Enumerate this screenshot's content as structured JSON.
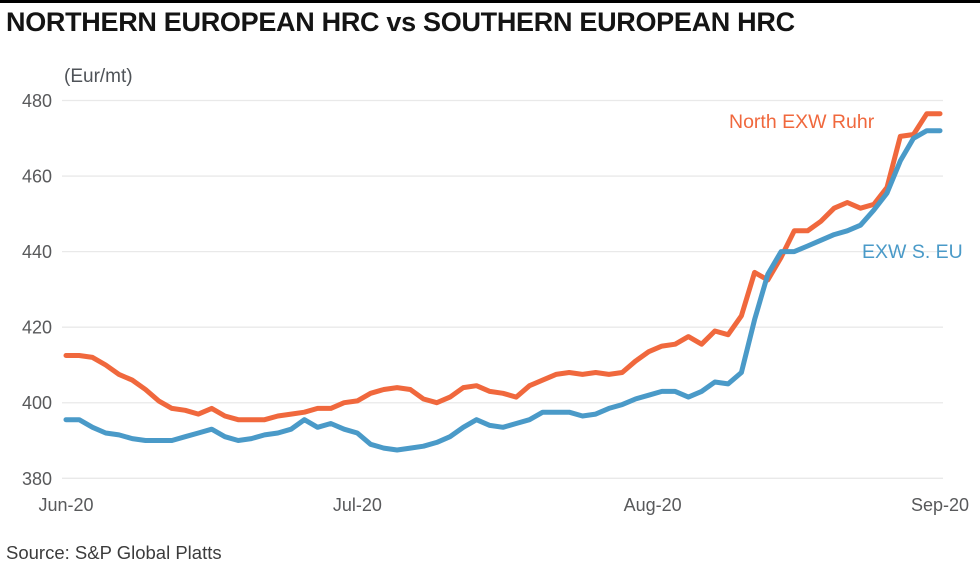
{
  "title": "NORTHERN EUROPEAN HRC vs SOUTHERN EUROPEAN HRC",
  "unit_label": "(Eur/mt)",
  "source": "Source: S&P Global Platts",
  "colors": {
    "north_line": "#f0683d",
    "south_line": "#4a9ac8",
    "gridline": "#e9e9e9",
    "axis_text": "#58595b",
    "unit_text": "#4f5358",
    "title_text": "#141414",
    "source_text": "#3c3c3c",
    "top_bar": "#000000",
    "background": "#ffffff"
  },
  "chart_data": {
    "type": "line",
    "title": "NORTHERN EUROPEAN HRC vs SOUTHERN EUROPEAN HRC",
    "ylabel": "(Eur/mt)",
    "ylim": [
      380,
      480
    ],
    "y_ticks": [
      380,
      400,
      420,
      440,
      460,
      480
    ],
    "grid": "horizontal",
    "legend_position": "inline-labels",
    "x_ticks": [
      {
        "label": "Jun-20",
        "pos": 0
      },
      {
        "label": "Jul-20",
        "pos": 22
      },
      {
        "label": "Aug-20",
        "pos": 44.3
      },
      {
        "label": "Sep-20",
        "pos": 66
      }
    ],
    "x": [
      "Jun-01",
      "Jun-02",
      "Jun-03",
      "Jun-04",
      "Jun-05",
      "Jun-08",
      "Jun-09",
      "Jun-10",
      "Jun-11",
      "Jun-12",
      "Jun-15",
      "Jun-16",
      "Jun-17",
      "Jun-18",
      "Jun-19",
      "Jun-22",
      "Jun-23",
      "Jun-24",
      "Jun-25",
      "Jun-26",
      "Jun-29",
      "Jun-30",
      "Jul-01",
      "Jul-02",
      "Jul-03",
      "Jul-06",
      "Jul-07",
      "Jul-08",
      "Jul-09",
      "Jul-10",
      "Jul-13",
      "Jul-14",
      "Jul-15",
      "Jul-16",
      "Jul-17",
      "Jul-20",
      "Jul-21",
      "Jul-22",
      "Jul-23",
      "Jul-24",
      "Jul-27",
      "Jul-28",
      "Jul-29",
      "Jul-30",
      "Jul-31",
      "Aug-03",
      "Aug-04",
      "Aug-05",
      "Aug-06",
      "Aug-07",
      "Aug-10",
      "Aug-11",
      "Aug-12",
      "Aug-13",
      "Aug-14",
      "Aug-17",
      "Aug-18",
      "Aug-19",
      "Aug-20",
      "Aug-21",
      "Aug-24",
      "Aug-25",
      "Aug-26",
      "Aug-27",
      "Aug-28",
      "Aug-31",
      "Sep-01"
    ],
    "series": [
      {
        "name": "North EXW Ruhr",
        "color": "#f0683d",
        "values": [
          412.5,
          412.5,
          412,
          410,
          407.5,
          406,
          403.5,
          400.5,
          398.5,
          398,
          397,
          398.5,
          396.5,
          395.5,
          395.5,
          395.5,
          396.5,
          397,
          397.5,
          398.5,
          398.5,
          400,
          400.5,
          402.5,
          403.5,
          404,
          403.5,
          401,
          400,
          401.5,
          404,
          404.5,
          403,
          402.5,
          401.5,
          404.5,
          406,
          407.5,
          408,
          407.5,
          408,
          407.5,
          408,
          411,
          413.5,
          415,
          415.5,
          417.5,
          415.5,
          419,
          418,
          423,
          434.5,
          432.5,
          438.5,
          445.5,
          445.5,
          448,
          451.5,
          453,
          451.5,
          452.5,
          457,
          470.5,
          471,
          476.5,
          476.5
        ]
      },
      {
        "name": "EXW S. EU",
        "color": "#4a9ac8",
        "values": [
          395.5,
          395.5,
          393.5,
          392,
          391.5,
          390.5,
          390,
          390,
          390,
          391,
          392,
          393,
          391,
          390,
          390.5,
          391.5,
          392,
          393,
          395.5,
          393.5,
          394.5,
          393,
          392,
          389,
          388,
          387.5,
          388,
          388.5,
          389.5,
          391,
          393.5,
          395.5,
          394,
          393.5,
          394.5,
          395.5,
          397.5,
          397.5,
          397.5,
          396.5,
          397,
          398.5,
          399.5,
          401,
          402,
          403,
          403,
          401.5,
          403,
          405.5,
          405,
          408,
          422,
          434,
          440,
          440,
          441.5,
          443,
          444.5,
          445.5,
          447,
          451,
          455.5,
          464,
          470,
          472,
          472
        ]
      }
    ]
  }
}
